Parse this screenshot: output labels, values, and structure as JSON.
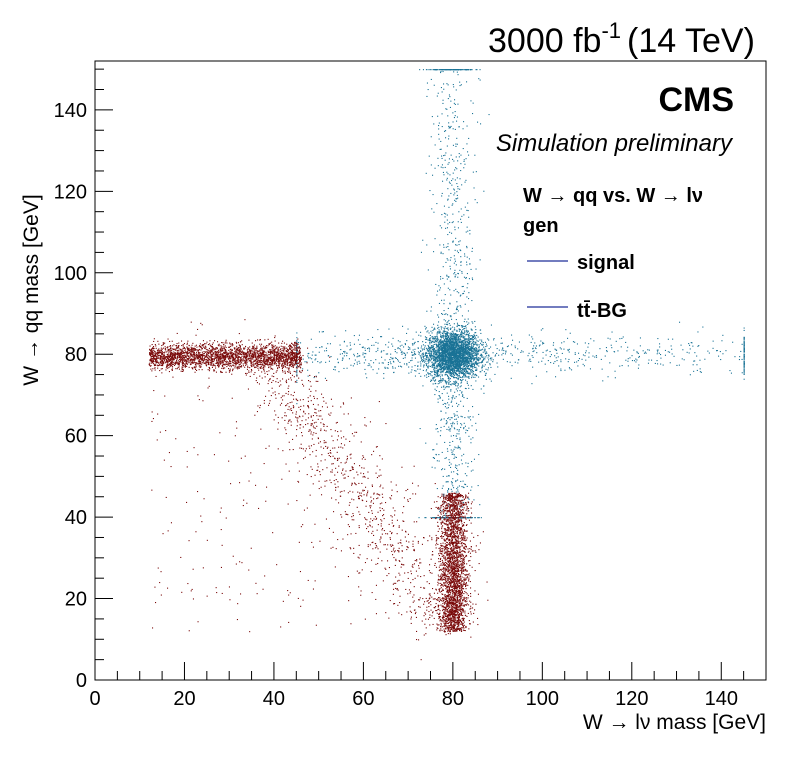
{
  "header": {
    "lumi_prefix": "3000 fb",
    "lumi_exp": "-1",
    "lumi_suffix": "(14 TeV)"
  },
  "labels": {
    "cms": "CMS",
    "sim": "Simulation preliminary",
    "legend_title_1": "W  → qq vs. W  → lν",
    "legend_title_2": "gen"
  },
  "chart_data": {
    "type": "scatter",
    "xlabel": "W → lν mass [GeV]",
    "ylabel": "W → qq mass [GeV]",
    "xlim": [
      0,
      150
    ],
    "ylim": [
      0,
      152
    ],
    "xticks": [
      0,
      20,
      40,
      60,
      80,
      100,
      120,
      140
    ],
    "yticks": [
      0,
      20,
      40,
      60,
      80,
      100,
      120,
      140
    ],
    "legend_position": "top-right",
    "grid": false,
    "series": [
      {
        "name": "signal",
        "color": "#1a7396",
        "legend_line_color": "#1f2f99",
        "components": [
          {
            "shape": "core",
            "center": [
              80,
              80
            ],
            "spread": [
              3,
              3
            ],
            "points": 2800
          },
          {
            "shape": "horizontal-band",
            "y": 80,
            "x_range": [
              45,
              145
            ],
            "y_spread": 2.5,
            "points": 900
          },
          {
            "shape": "vertical-band",
            "x": 80,
            "y_range": [
              40,
              150
            ],
            "x_spread": 2.5,
            "points": 1100
          }
        ]
      },
      {
        "name": "tt̄-BG",
        "color": "#7a0a0a",
        "legend_line_color": "#1f2f99",
        "components": [
          {
            "shape": "horizontal-band",
            "y": 79.5,
            "x_range": [
              12,
              46
            ],
            "y_spread": 1.6,
            "points": 2600
          },
          {
            "shape": "vertical-band",
            "x": 80,
            "y_range": [
              12,
              46
            ],
            "x_spread": 1.6,
            "points": 2600
          },
          {
            "shape": "diagonal-band",
            "from": [
              40,
              78
            ],
            "to": [
              78,
              14
            ],
            "spread": 4,
            "points": 900
          },
          {
            "shape": "diffuse",
            "x_range": [
              12,
              88
            ],
            "y_range": [
              12,
              90
            ],
            "points": 350
          }
        ]
      }
    ]
  }
}
